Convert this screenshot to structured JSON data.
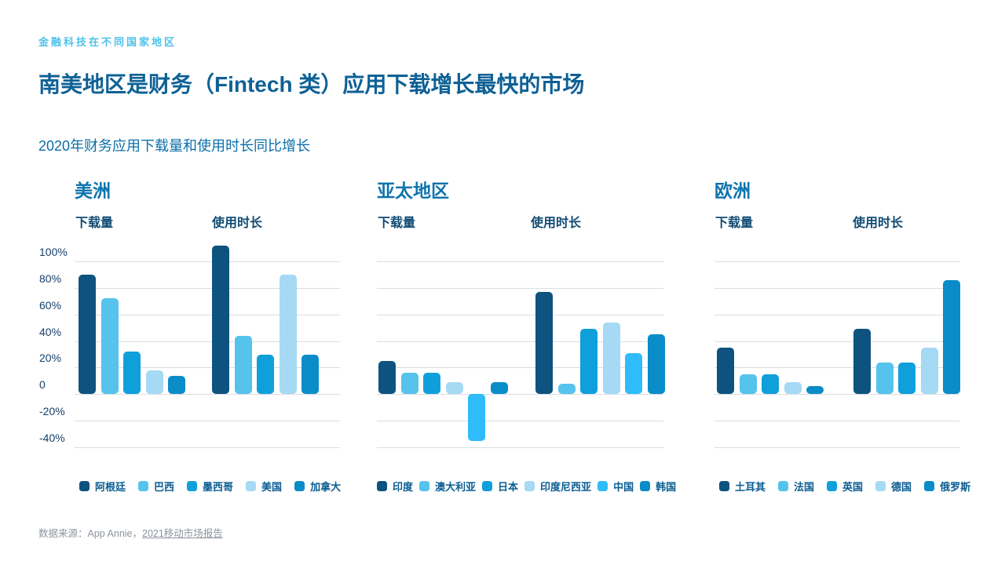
{
  "page": {
    "eyebrow": "金融科技在不同国家地区",
    "title": "南美地区是财务（Fintech 类）应用下载增长最快的市场",
    "subtitle": "2020年财务应用下载量和使用时长同比增长",
    "source_prefix": "数据来源：App Annie，",
    "source_link": "2021移动市场报告"
  },
  "colors": {
    "accent_light_blue": "#4FC1EB",
    "title_blue": "#0E6195",
    "subtitle_blue": "#0C6FA9",
    "region_blue": "#0F74AE",
    "label_navy": "#114B74",
    "axis_text": "#16406A",
    "legend_text": "#0A5C92",
    "gridline": "#D9DDE3",
    "source_gray": "#8C949C"
  },
  "axis": {
    "ticks": [
      {
        "label": "100%",
        "value": 100
      },
      {
        "label": "80%",
        "value": 80
      },
      {
        "label": "60%",
        "value": 60
      },
      {
        "label": "40%",
        "value": 40
      },
      {
        "label": "20%",
        "value": 20
      },
      {
        "label": "0",
        "value": 0
      },
      {
        "label": "-20%",
        "value": -20
      },
      {
        "label": "-40%",
        "value": -40
      }
    ],
    "ylim": [
      -40,
      100
    ],
    "unit": "%"
  },
  "chart_data": [
    {
      "type": "bar",
      "region": "美洲",
      "categories": [
        "阿根廷",
        "巴西",
        "墨西哥",
        "美国",
        "加拿大"
      ],
      "colors": [
        "#0E537F",
        "#55C3EB",
        "#0FA0DB",
        "#A6D9F4",
        "#0A8CC9"
      ],
      "series": [
        {
          "name": "下载量",
          "values": [
            90,
            72,
            32,
            18,
            14
          ]
        },
        {
          "name": "使用时长",
          "values": [
            112,
            44,
            30,
            90,
            30
          ]
        }
      ]
    },
    {
      "type": "bar",
      "region": "亚太地区",
      "categories": [
        "印度",
        "澳大利亚",
        "日本",
        "印度尼西亚",
        "中国",
        "韩国"
      ],
      "colors": [
        "#0E537F",
        "#55C3EB",
        "#0FA0DB",
        "#A6D9F4",
        "#30BCFA",
        "#0A8CC9"
      ],
      "series": [
        {
          "name": "下载量",
          "values": [
            25,
            16,
            16,
            9,
            -35,
            9
          ]
        },
        {
          "name": "使用时长",
          "values": [
            77,
            8,
            49,
            54,
            31,
            45
          ]
        }
      ]
    },
    {
      "type": "bar",
      "region": "欧洲",
      "categories": [
        "土耳其",
        "法国",
        "英国",
        "德国",
        "俄罗斯"
      ],
      "colors": [
        "#0E537F",
        "#55C3EB",
        "#0FA0DB",
        "#A6D9F4",
        "#0A8CC9"
      ],
      "series": [
        {
          "name": "下载量",
          "values": [
            35,
            15,
            15,
            9,
            6
          ]
        },
        {
          "name": "使用时长",
          "values": [
            49,
            24,
            24,
            35,
            86
          ]
        }
      ]
    }
  ]
}
